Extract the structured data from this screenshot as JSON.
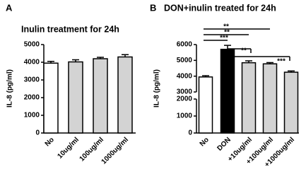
{
  "chart_data": [
    {
      "type": "bar",
      "panel": "A",
      "title": "Inulin treatment for 24h",
      "y_label": "IL-8 (pg/ml)",
      "categories": [
        "No",
        "10ug/ml",
        "100ug/ml",
        "1000ug/ml"
      ],
      "values": [
        3950,
        4020,
        4200,
        4300
      ],
      "errors": [
        100,
        120,
        80,
        130
      ],
      "colors": [
        "#ffffff",
        "#d3d3d3",
        "#d3d3d3",
        "#d3d3d3"
      ],
      "ylim": [
        0,
        5000
      ],
      "yticks": [
        0,
        1000,
        2000,
        3000,
        4000,
        5000
      ]
    },
    {
      "type": "bar",
      "panel": "B",
      "title": "DON+inulin treated for 24h",
      "y_label": "IL-8 (pg/ml)",
      "categories": [
        "No",
        "DON",
        "+10ug/ml",
        "+100ug/ml",
        "+1000ug/ml"
      ],
      "values": [
        3950,
        5700,
        4850,
        4780,
        4250
      ],
      "errors": [
        80,
        250,
        120,
        80,
        80
      ],
      "colors": [
        "#ffffff",
        "#000000",
        "#d3d3d3",
        "#d3d3d3",
        "#d3d3d3"
      ],
      "ylim": [
        0,
        6000
      ],
      "ybreak": [
        2000,
        3000
      ],
      "yticks": [
        0,
        1000,
        2000,
        3000,
        4000,
        5000,
        6000
      ],
      "annotations": [
        "**",
        "**",
        "***",
        "**",
        "***"
      ]
    }
  ]
}
